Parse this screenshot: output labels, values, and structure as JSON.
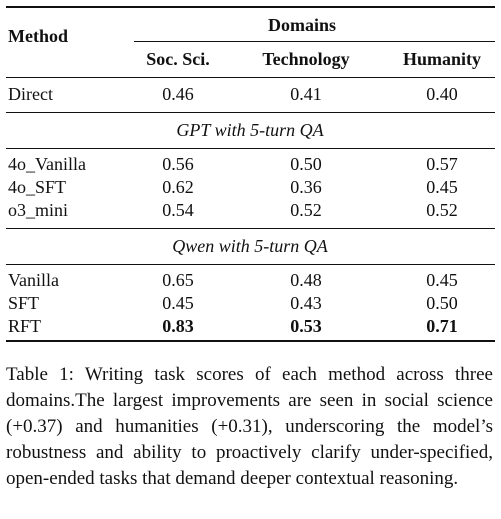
{
  "table": {
    "header": {
      "method": "Method",
      "domains": "Domains",
      "columns": [
        "Soc. Sci.",
        "Technology",
        "Humanity"
      ]
    },
    "groups": [
      {
        "label": "",
        "rows": [
          {
            "method": "Direct",
            "values": [
              "0.46",
              "0.41",
              "0.40"
            ],
            "bold": [
              false,
              false,
              false
            ]
          }
        ]
      },
      {
        "label": "GPT with 5-turn QA",
        "rows": [
          {
            "method": "4o_Vanilla",
            "values": [
              "0.56",
              "0.50",
              "0.57"
            ],
            "bold": [
              false,
              false,
              false
            ]
          },
          {
            "method": "4o_SFT",
            "values": [
              "0.62",
              "0.36",
              "0.45"
            ],
            "bold": [
              false,
              false,
              false
            ]
          },
          {
            "method": "o3_mini",
            "values": [
              "0.54",
              "0.52",
              "0.52"
            ],
            "bold": [
              false,
              false,
              false
            ]
          }
        ]
      },
      {
        "label": "Qwen with 5-turn QA",
        "rows": [
          {
            "method": "Vanilla",
            "values": [
              "0.65",
              "0.48",
              "0.45"
            ],
            "bold": [
              false,
              false,
              false
            ]
          },
          {
            "method": "SFT",
            "values": [
              "0.45",
              "0.43",
              "0.50"
            ],
            "bold": [
              false,
              false,
              false
            ]
          },
          {
            "method": "RFT",
            "values": [
              "0.83",
              "0.53",
              "0.71"
            ],
            "bold": [
              true,
              true,
              true
            ]
          }
        ]
      }
    ]
  },
  "caption": "Table 1: Writing task scores of each method across three domains.The largest improvements are seen in social science (+0.37) and humanities (+0.31), underscoring the model’s robustness and ability to proactively clarify under-specified, open-ended tasks that demand deeper contextual reasoning."
}
